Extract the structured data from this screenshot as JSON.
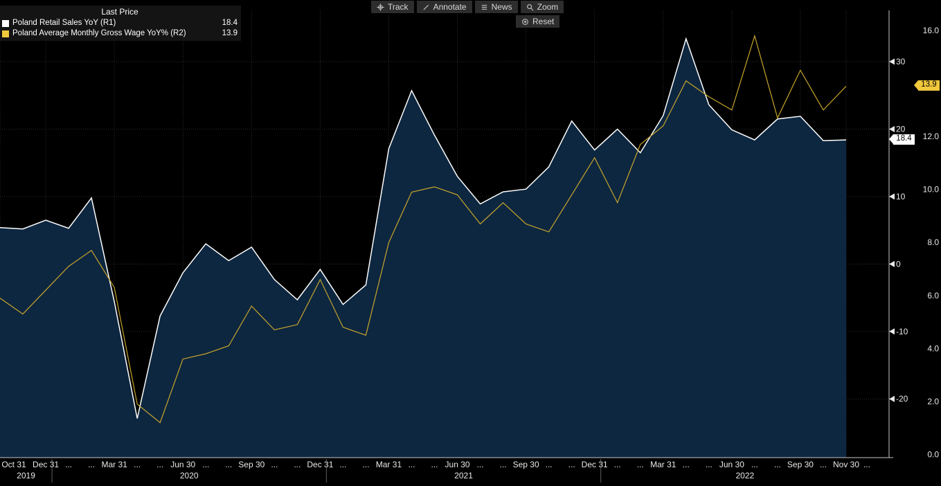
{
  "toolbar": {
    "buttons": [
      {
        "id": "track",
        "label": "Track"
      },
      {
        "id": "annotate",
        "label": "Annotate"
      },
      {
        "id": "news",
        "label": "News"
      },
      {
        "id": "zoom",
        "label": "Zoom"
      }
    ],
    "reset_label": "Reset"
  },
  "legend": {
    "title": "Last Price",
    "rows": [
      {
        "label": "Poland Retail Sales YoY  (R1)",
        "value": "18.4",
        "swatch_color": "#ffffff"
      },
      {
        "label": "Poland Average Monthly Gross Wage YoY%  (R2)",
        "value": "13.9",
        "swatch_color": "#f0c83c"
      }
    ]
  },
  "chart_data": {
    "type": "line",
    "frequency": "monthly",
    "x_start": "2019-10-31",
    "x_end": "2022-11-30",
    "background": "#000000",
    "grid": true,
    "series": [
      {
        "name": "Poland Retail Sales YoY",
        "axis": "R1",
        "color": "#ffffff",
        "fill_color": "#0e2740",
        "last_price": "18.4",
        "values": [
          5.4,
          5.2,
          6.5,
          5.3,
          9.8,
          -5.6,
          -22.9,
          -7.7,
          -1.3,
          3.0,
          0.5,
          2.5,
          -2.3,
          -5.3,
          -0.8,
          -6.0,
          -3.1,
          17.1,
          25.7,
          19.1,
          13.0,
          8.9,
          10.7,
          11.1,
          14.4,
          21.2,
          16.9,
          20.0,
          16.5,
          22.0,
          33.4,
          23.6,
          19.9,
          18.4,
          21.5,
          21.9,
          18.3,
          18.4
        ]
      },
      {
        "name": "Poland Average Monthly Gross Wage YoY%",
        "axis": "R2",
        "color": "#c8a62b",
        "badge_color": "#f0c83c",
        "last_price": "13.9",
        "values": [
          5.9,
          5.3,
          6.2,
          7.1,
          7.7,
          6.3,
          1.9,
          1.2,
          3.6,
          3.8,
          4.1,
          5.6,
          4.7,
          4.9,
          6.6,
          4.8,
          4.5,
          8.0,
          9.9,
          10.1,
          9.8,
          8.7,
          9.5,
          8.7,
          8.4,
          9.8,
          11.2,
          9.5,
          11.7,
          12.4,
          14.1,
          13.5,
          13.0,
          15.8,
          12.7,
          14.5,
          13.0,
          13.9
        ]
      }
    ],
    "axes": {
      "R1": {
        "side": "right-inner",
        "ticks": [
          30,
          20,
          10,
          0,
          -10,
          -20
        ],
        "range": [
          -28.7,
          37.6
        ]
      },
      "R2": {
        "side": "right-outer",
        "ticks": [
          16,
          14,
          12,
          10,
          8,
          6,
          4,
          2,
          0
        ],
        "range": [
          -0.12,
          16.76
        ],
        "tick_format": "0.0"
      }
    },
    "x_axis": {
      "ellipsis": "...",
      "ticks": [
        {
          "label": "Oct 31",
          "i": 0
        },
        {
          "label": "Dec 31",
          "i": 2
        },
        {
          "label": "Mar 31",
          "i": 5
        },
        {
          "label": "Jun 30",
          "i": 8
        },
        {
          "label": "Sep 30",
          "i": 11
        },
        {
          "label": "Dec 31",
          "i": 14
        },
        {
          "label": "Mar 31",
          "i": 17
        },
        {
          "label": "Jun 30",
          "i": 20
        },
        {
          "label": "Sep 30",
          "i": 23
        },
        {
          "label": "Dec 31",
          "i": 26
        },
        {
          "label": "Mar 31",
          "i": 29
        },
        {
          "label": "Jun 30",
          "i": 32
        },
        {
          "label": "Sep 30",
          "i": 35
        },
        {
          "label": "Nov 30",
          "i": 37
        }
      ],
      "years": [
        {
          "label": "2019",
          "end_i": 2
        },
        {
          "label": "2020",
          "end_i": 14
        },
        {
          "label": "2021",
          "end_i": 26
        },
        {
          "label": "2022",
          "end_i": null
        }
      ]
    }
  }
}
